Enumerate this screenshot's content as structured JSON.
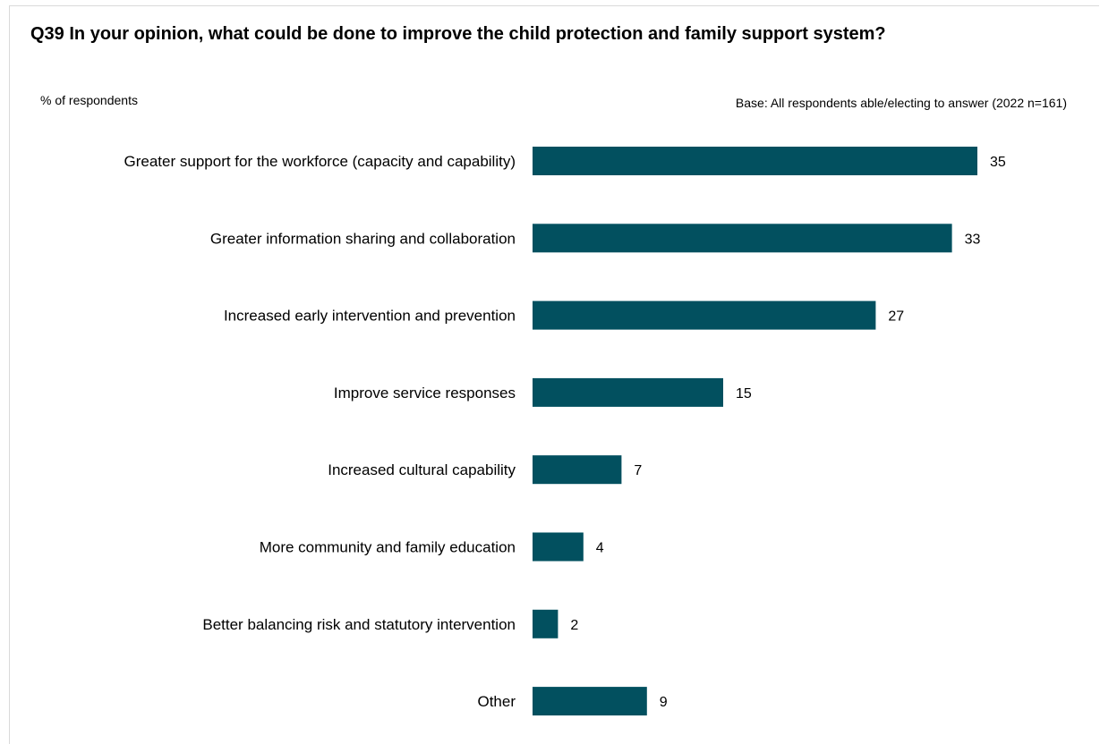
{
  "chart_data": {
    "type": "bar",
    "orientation": "horizontal",
    "title": "Q39 In your opinion, what could be done to improve the child protection and family support system?",
    "ylabel": "% of respondents",
    "base_note": "Base: All respondents able/electing to answer (2022 n=161)",
    "categories": [
      "Greater support for the workforce (capacity and capability)",
      "Greater information sharing and collaboration",
      "Increased early intervention and prevention",
      "Improve service responses",
      "Increased cultural capability",
      "More community and family education",
      "Better balancing risk and statutory intervention",
      "Other"
    ],
    "values": [
      35,
      33,
      27,
      15,
      7,
      4,
      2,
      9
    ],
    "xlim": [
      0,
      35
    ],
    "bar_color": "#02505f",
    "grid": false
  }
}
